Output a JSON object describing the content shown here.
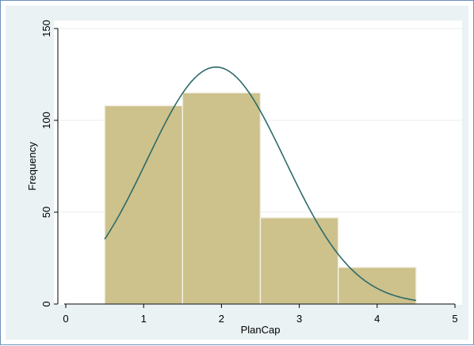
{
  "chart_data": {
    "type": "bar",
    "subtype": "histogram-with-normal-density",
    "title": "",
    "xlabel": "PlanCap",
    "ylabel": "Frequency",
    "xlim": [
      0,
      5
    ],
    "ylim": [
      0,
      150
    ],
    "x_ticks": [
      0,
      1,
      2,
      3,
      4,
      5
    ],
    "y_ticks": [
      0,
      50,
      100,
      150
    ],
    "grid": "horizontal",
    "bins": [
      {
        "start": 0.5,
        "end": 1.5,
        "value": 108
      },
      {
        "start": 1.5,
        "end": 2.5,
        "value": 115
      },
      {
        "start": 2.5,
        "end": 3.5,
        "value": 47
      },
      {
        "start": 3.5,
        "end": 4.5,
        "value": 20
      }
    ],
    "normal_curve": {
      "peak_x": 1.93,
      "peak_value": 129,
      "sd": 0.8885,
      "x_range": [
        0.5,
        4.5
      ]
    },
    "colors": {
      "bar_fill": "#cdc18c",
      "bar_edge": "#f2efe0",
      "curve": "#2d6b68",
      "panel_bg": "#eaf2f3",
      "plot_bg": "#ffffff",
      "grid": "#e9eef0"
    }
  }
}
